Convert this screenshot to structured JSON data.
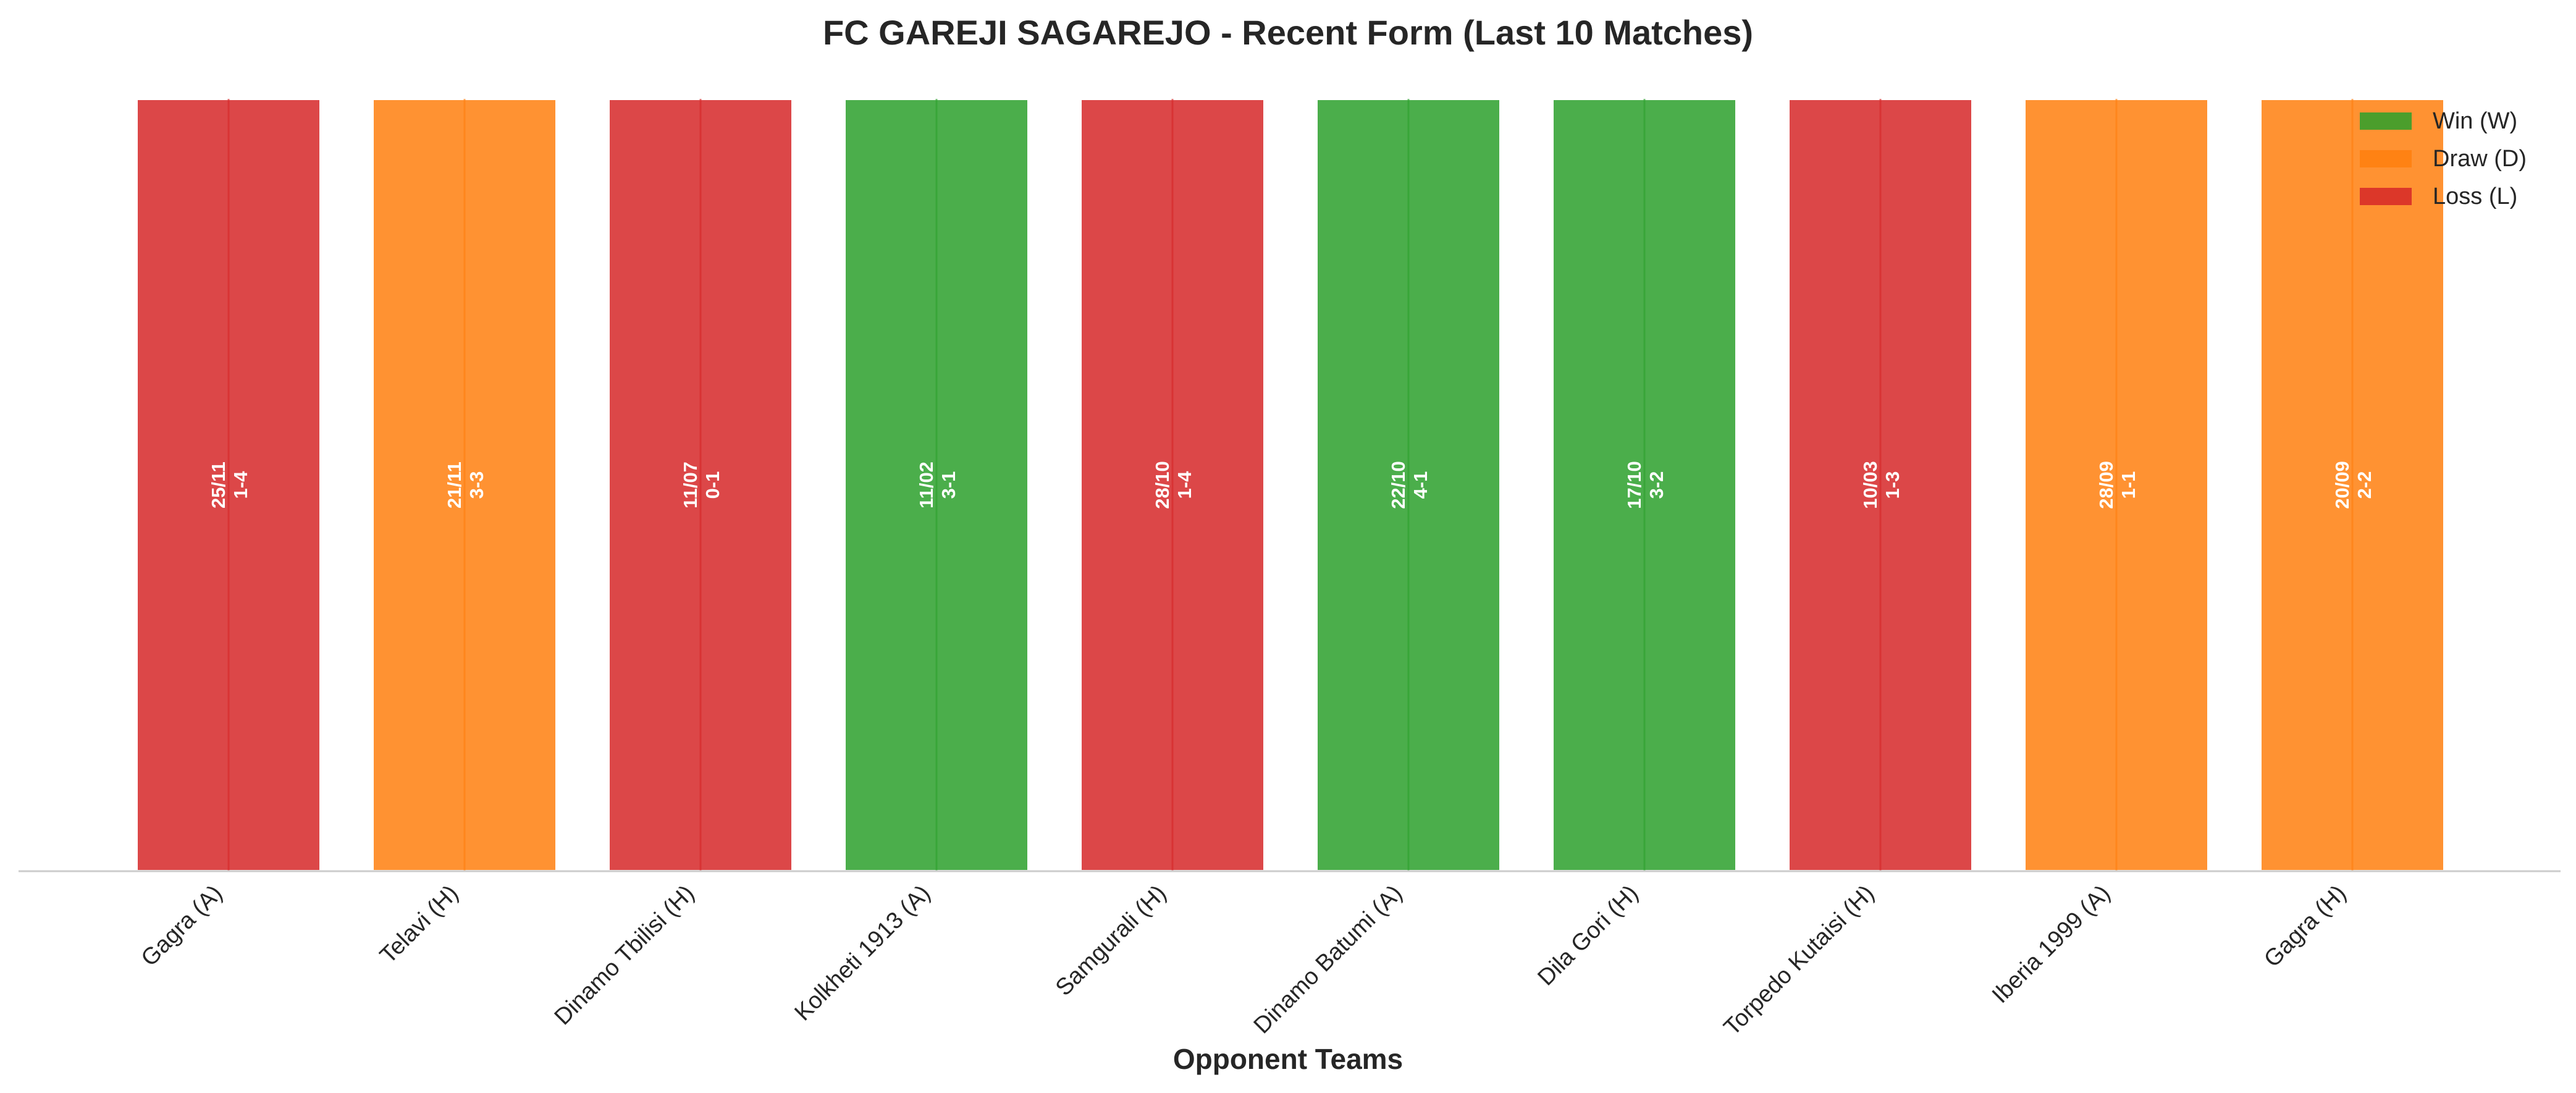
{
  "chart_data": {
    "type": "bar",
    "title": "FC GAREJI SAGAREJO - Recent Form (Last 10 Matches)",
    "xlabel": "Opponent Teams",
    "ylabel": "",
    "grid": false,
    "legend_position": "top-right",
    "categories": [
      "Gagra (A)",
      "Telavi (H)",
      "Dinamo Tbilisi (H)",
      "Kolkheti 1913 (A)",
      "Samgurali (H)",
      "Dinamo Batumi (A)",
      "Dila Gori (H)",
      "Torpedo Kutaisi (H)",
      "Iberia 1999 (A)",
      "Gagra (H)"
    ],
    "values": [
      1,
      1,
      1,
      1,
      1,
      1,
      1,
      1,
      1,
      1
    ],
    "results": [
      "L",
      "D",
      "L",
      "W",
      "L",
      "W",
      "W",
      "L",
      "D",
      "D"
    ],
    "dates": [
      "25/11",
      "21/11",
      "11/07",
      "11/02",
      "28/10",
      "22/10",
      "17/10",
      "10/03",
      "28/09",
      "20/09"
    ],
    "scores": [
      "1-4",
      "3-3",
      "0-1",
      "3-1",
      "1-4",
      "4-1",
      "3-2",
      "1-3",
      "1-1",
      "2-2"
    ],
    "ylim": [
      0,
      1.05
    ],
    "legend": [
      {
        "key": "W",
        "label": "Win (W)",
        "color": "#2ca02c"
      },
      {
        "key": "D",
        "label": "Draw (D)",
        "color": "#ff7f0e"
      },
      {
        "key": "L",
        "label": "Loss (L)",
        "color": "#d62728"
      }
    ]
  }
}
